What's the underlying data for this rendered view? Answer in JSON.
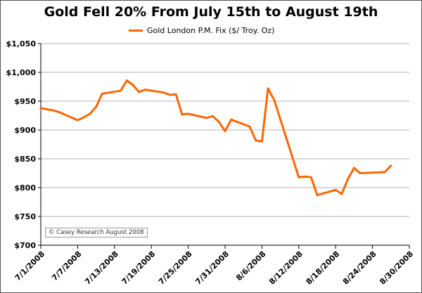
{
  "chart_data": {
    "type": "line",
    "title": "Gold Fell 20% From July 15th to August 19th",
    "xlabel": "",
    "ylabel": "",
    "ylim": [
      700,
      1050
    ],
    "xlim": [
      "7/1/2008",
      "8/30/2008"
    ],
    "y_ticks": [
      "$700",
      "$750",
      "$800",
      "$850",
      "$900",
      "$950",
      "$1,000",
      "$1,050"
    ],
    "x_ticks": [
      "7/1/2008",
      "7/7/2008",
      "7/13/2008",
      "7/19/2008",
      "7/25/2008",
      "7/31/2008",
      "8/6/2008",
      "8/12/2008",
      "8/18/2008",
      "8/24/2008",
      "8/30/2008"
    ],
    "grid": true,
    "legend_position": "top-center",
    "series": [
      {
        "name": "Gold London P.M. Fix ($/ Troy. Oz)",
        "color": "#ff6600",
        "points": [
          {
            "x": "7/1/2008",
            "y": 938
          },
          {
            "x": "7/2/2008",
            "y": 936
          },
          {
            "x": "7/3/2008",
            "y": 934
          },
          {
            "x": "7/4/2008",
            "y": 931
          },
          {
            "x": "7/7/2008",
            "y": 917
          },
          {
            "x": "7/8/2008",
            "y": 922
          },
          {
            "x": "7/9/2008",
            "y": 928
          },
          {
            "x": "7/10/2008",
            "y": 940
          },
          {
            "x": "7/11/2008",
            "y": 963
          },
          {
            "x": "7/14/2008",
            "y": 968
          },
          {
            "x": "7/15/2008",
            "y": 986
          },
          {
            "x": "7/16/2008",
            "y": 978
          },
          {
            "x": "7/17/2008",
            "y": 966
          },
          {
            "x": "7/18/2008",
            "y": 970
          },
          {
            "x": "7/21/2008",
            "y": 965
          },
          {
            "x": "7/22/2008",
            "y": 961
          },
          {
            "x": "7/23/2008",
            "y": 962
          },
          {
            "x": "7/24/2008",
            "y": 927
          },
          {
            "x": "7/25/2008",
            "y": 928
          },
          {
            "x": "7/28/2008",
            "y": 921
          },
          {
            "x": "7/29/2008",
            "y": 924
          },
          {
            "x": "7/30/2008",
            "y": 914
          },
          {
            "x": "7/31/2008",
            "y": 898
          },
          {
            "x": "8/1/2008",
            "y": 918
          },
          {
            "x": "8/4/2008",
            "y": 906
          },
          {
            "x": "8/5/2008",
            "y": 882
          },
          {
            "x": "8/6/2008",
            "y": 880
          },
          {
            "x": "8/7/2008",
            "y": 972
          },
          {
            "x": "8/8/2008",
            "y": 952
          },
          {
            "x": "8/12/2008",
            "y": 818
          },
          {
            "x": "8/13/2008",
            "y": 819
          },
          {
            "x": "8/14/2008",
            "y": 818
          },
          {
            "x": "8/15/2008",
            "y": 787
          },
          {
            "x": "8/18/2008",
            "y": 796
          },
          {
            "x": "8/19/2008",
            "y": 789
          },
          {
            "x": "8/20/2008",
            "y": 815
          },
          {
            "x": "8/21/2008",
            "y": 834
          },
          {
            "x": "8/22/2008",
            "y": 825
          },
          {
            "x": "8/26/2008",
            "y": 827
          },
          {
            "x": "8/27/2008",
            "y": 838
          }
        ]
      }
    ],
    "annotation": "© Casey Research August 2008"
  }
}
